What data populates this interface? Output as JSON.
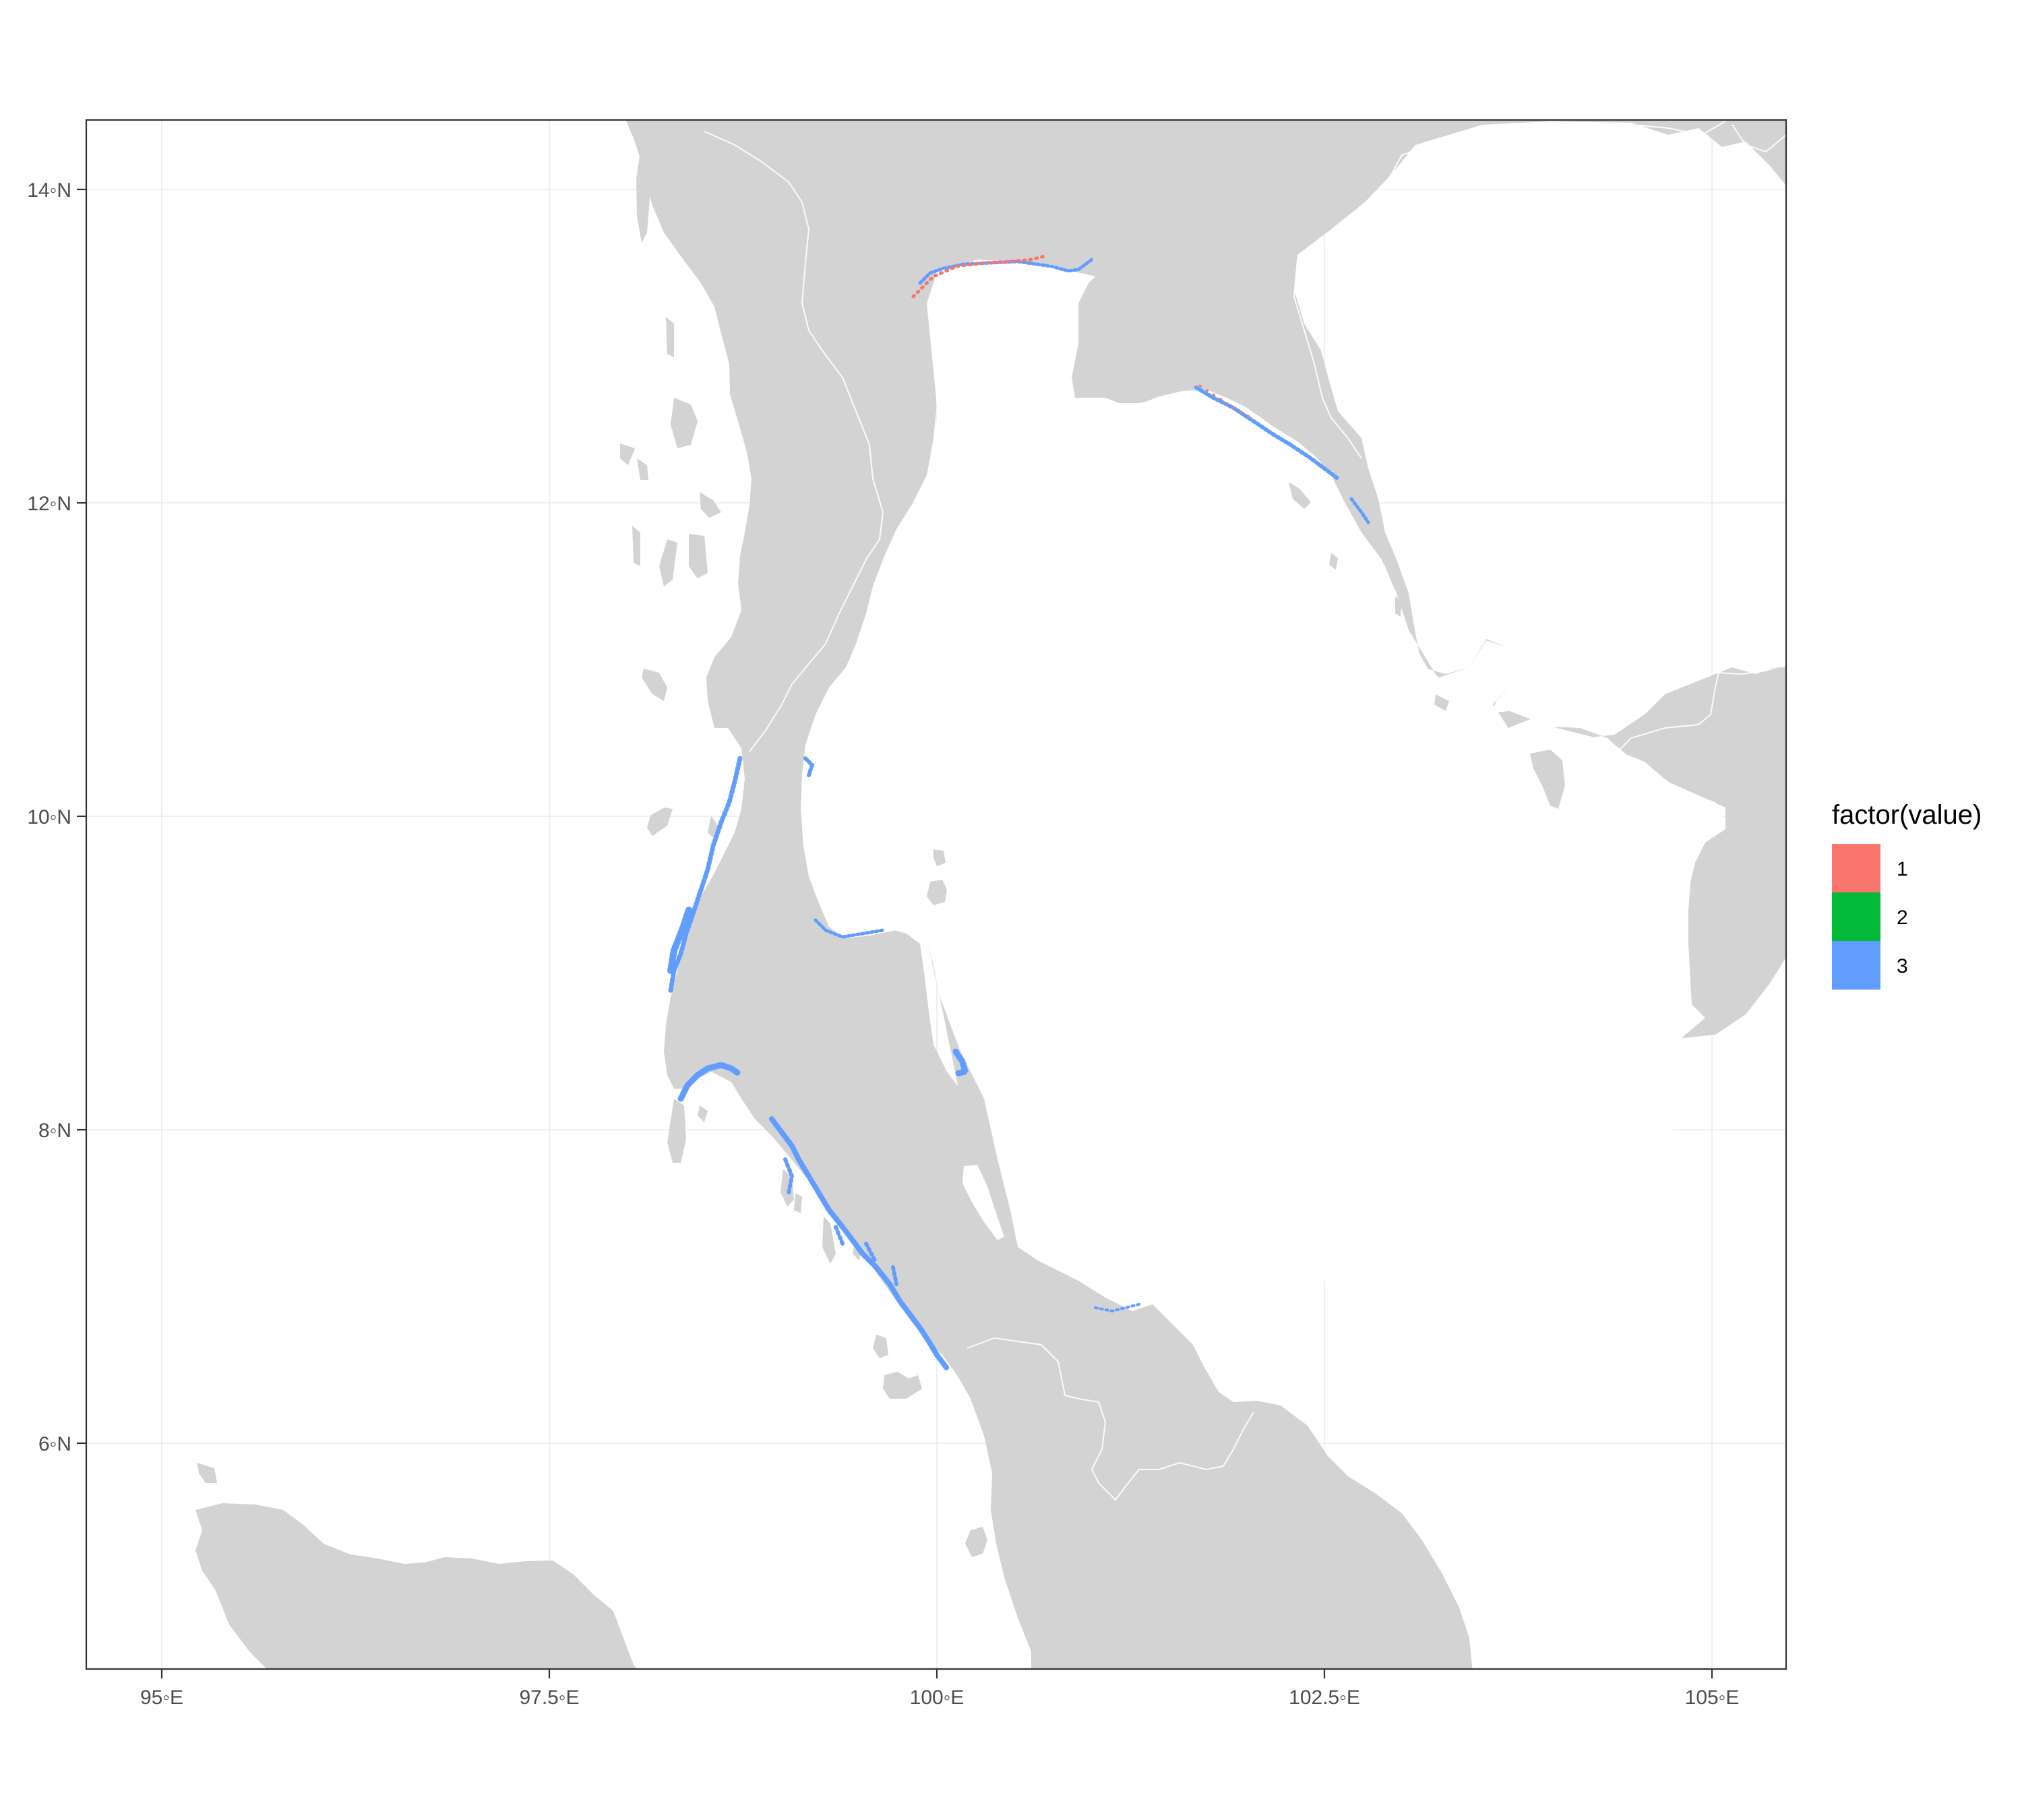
{
  "map": {
    "x_ticks": [
      "95◦E",
      "97.5◦E",
      "100◦E",
      "102.5◦E",
      "105◦E"
    ],
    "y_ticks": [
      "14◦N",
      "12◦N",
      "10◦N",
      "8◦N",
      "6◦N"
    ],
    "land_color": "#d3d3d3",
    "background_color": "#ffffff",
    "grid": true,
    "legend_placement": "right"
  },
  "legend": {
    "title": "factor(value)",
    "items": [
      {
        "label": "1",
        "color": "#F8766D"
      },
      {
        "label": "2",
        "color": "#00BA38"
      },
      {
        "label": "3",
        "color": "#619CFF"
      }
    ]
  }
}
